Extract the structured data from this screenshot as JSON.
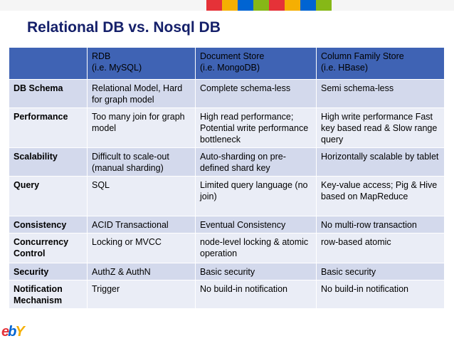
{
  "slide": {
    "title": "Relational DB vs. Nosql DB",
    "top_bar_colors": [
      "#f5f5f5",
      "#e53238",
      "#f5af02",
      "#0064d2",
      "#86b817",
      "#e53238",
      "#f5af02",
      "#0064d2",
      "#86b817",
      "#f5f5f5"
    ]
  },
  "table": {
    "headers": [
      {
        "line1": "",
        "line2": ""
      },
      {
        "line1": "RDB",
        "line2": "(i.e. MySQL)"
      },
      {
        "line1": "Document Store",
        "line2": "(i.e. MongoDB)"
      },
      {
        "line1": "Column Family Store",
        "line2": "(i.e. HBase)"
      }
    ],
    "rows": [
      {
        "label": "DB Schema",
        "rdb": "Relational Model, Hard for graph model",
        "doc": "Complete schema-less",
        "col": "Semi schema-less"
      },
      {
        "label": "Performance",
        "rdb": "Too many join for graph model",
        "doc": "High read performance; Potential write performance bottleneck",
        "col": "High write performance Fast key based read & Slow range query"
      },
      {
        "label": "Scalability",
        "rdb": "Difficult to scale-out (manual sharding)",
        "doc": "Auto-sharding on pre-defined shard key",
        "col": "Horizontally scalable by tablet"
      },
      {
        "label": "Query",
        "rdb": "SQL",
        "doc": "Limited query language (no join)",
        "col": "Key-value access; Pig & Hive based on MapReduce"
      },
      {
        "label": "Consistency",
        "rdb": "ACID Transactional",
        "doc": "Eventual Consistency",
        "col": "No multi-row transaction"
      },
      {
        "label": "Concurrency Control",
        "rdb": "Locking or MVCC",
        "doc": "node-level locking & atomic operation",
        "col": "row-based atomic"
      },
      {
        "label": "Security",
        "rdb": "AuthZ & AuthN",
        "doc": "Basic  security",
        "col": "Basic  security"
      },
      {
        "label": "Notification Mechanism",
        "rdb": "Trigger",
        "doc": "No build-in notification",
        "col": "No build-in notification"
      }
    ]
  },
  "logo": {
    "letters": [
      {
        "ch": "e",
        "color": "#e53238"
      },
      {
        "ch": "b",
        "color": "#0064d2"
      },
      {
        "ch": "Y",
        "color": "#f5af02"
      }
    ]
  }
}
